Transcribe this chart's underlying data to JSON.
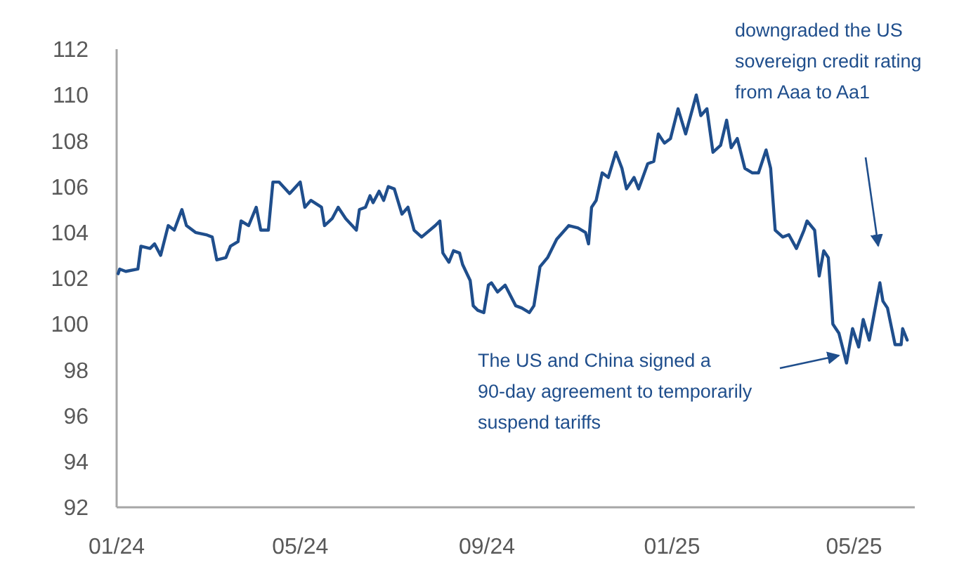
{
  "chart_data": {
    "type": "line",
    "x": [
      "2024-01-02",
      "2024-01-03",
      "2024-01-07",
      "2024-01-15",
      "2024-01-17",
      "2024-01-23",
      "2024-01-26",
      "2024-01-30",
      "2024-02-04",
      "2024-02-08",
      "2024-02-13",
      "2024-02-16",
      "2024-02-22",
      "2024-02-29",
      "2024-03-04",
      "2024-03-07",
      "2024-03-13",
      "2024-03-16",
      "2024-03-21",
      "2024-03-23",
      "2024-03-28",
      "2024-04-02",
      "2024-04-05",
      "2024-04-10",
      "2024-04-13",
      "2024-04-17",
      "2024-04-24",
      "2024-05-01",
      "2024-05-04",
      "2024-05-08",
      "2024-05-15",
      "2024-05-17",
      "2024-05-22",
      "2024-05-26",
      "2024-05-31",
      "2024-06-07",
      "2024-06-09",
      "2024-06-13",
      "2024-06-16",
      "2024-06-18",
      "2024-06-22",
      "2024-06-25",
      "2024-06-28",
      "2024-07-02",
      "2024-07-07",
      "2024-07-11",
      "2024-07-15",
      "2024-07-20",
      "2024-07-29",
      "2024-08-01",
      "2024-08-03",
      "2024-08-07",
      "2024-08-10",
      "2024-08-14",
      "2024-08-16",
      "2024-08-21",
      "2024-08-23",
      "2024-08-26",
      "2024-08-30",
      "2024-09-02",
      "2024-09-04",
      "2024-09-08",
      "2024-09-13",
      "2024-09-20",
      "2024-09-24",
      "2024-09-29",
      "2024-10-02",
      "2024-10-06",
      "2024-10-11",
      "2024-10-17",
      "2024-10-25",
      "2024-10-31",
      "2024-11-05",
      "2024-11-07",
      "2024-11-09",
      "2024-11-12",
      "2024-11-16",
      "2024-11-20",
      "2024-11-25",
      "2024-11-29",
      "2024-12-02",
      "2024-12-07",
      "2024-12-10",
      "2024-12-16",
      "2024-12-20",
      "2024-12-23",
      "2024-12-27",
      "2024-12-31",
      "2025-01-05",
      "2025-01-10",
      "2025-01-17",
      "2025-01-20",
      "2025-01-24",
      "2025-01-28",
      "2025-02-02",
      "2025-02-06",
      "2025-02-09",
      "2025-02-13",
      "2025-02-18",
      "2025-02-23",
      "2025-02-27",
      "2025-03-04",
      "2025-03-07",
      "2025-03-10",
      "2025-03-15",
      "2025-03-19",
      "2025-03-24",
      "2025-03-29",
      "2025-03-31",
      "2025-04-05",
      "2025-04-08",
      "2025-04-11",
      "2025-04-14",
      "2025-04-17",
      "2025-04-21",
      "2025-04-26",
      "2025-04-30",
      "2025-05-04",
      "2025-05-07",
      "2025-05-11",
      "2025-05-18",
      "2025-05-20",
      "2025-05-23",
      "2025-05-28",
      "2025-06-01",
      "2025-06-02",
      "2025-06-05"
    ],
    "series": [
      {
        "color": "#1f4e8c",
        "values": [
          102.2,
          102.4,
          102.3,
          102.4,
          103.4,
          103.3,
          103.5,
          103.0,
          104.3,
          104.1,
          105.0,
          104.3,
          104.0,
          103.9,
          103.8,
          102.8,
          102.9,
          103.4,
          103.6,
          104.5,
          104.3,
          105.1,
          104.1,
          104.1,
          106.2,
          106.2,
          105.7,
          106.2,
          105.1,
          105.4,
          105.1,
          104.3,
          104.6,
          105.1,
          104.6,
          104.1,
          105.0,
          105.1,
          105.6,
          105.3,
          105.8,
          105.4,
          106.0,
          105.9,
          104.8,
          105.1,
          104.1,
          103.8,
          104.3,
          104.5,
          103.1,
          102.7,
          103.2,
          103.1,
          102.6,
          101.9,
          100.8,
          100.6,
          100.5,
          101.7,
          101.8,
          101.4,
          101.7,
          100.8,
          100.7,
          100.5,
          100.8,
          102.5,
          102.9,
          103.7,
          104.3,
          104.2,
          104.0,
          103.5,
          105.1,
          105.4,
          106.6,
          106.4,
          107.5,
          106.8,
          105.9,
          106.4,
          105.9,
          107.0,
          107.1,
          108.3,
          107.9,
          108.1,
          109.4,
          108.3,
          110.0,
          109.1,
          109.4,
          107.5,
          107.8,
          108.9,
          107.7,
          108.1,
          106.8,
          106.6,
          106.6,
          107.6,
          106.8,
          104.1,
          103.8,
          103.9,
          103.3,
          104.1,
          104.5,
          104.1,
          102.1,
          103.2,
          102.9,
          100.0,
          99.6,
          98.3,
          99.8,
          99.0,
          100.2,
          99.3,
          101.8,
          101.0,
          100.7,
          99.1,
          99.1,
          99.8,
          99.3
        ]
      }
    ],
    "xlim": [
      "2024-01-01",
      "2025-06-10"
    ],
    "xticks": [
      {
        "value": "2024-01-01",
        "label": "01/24"
      },
      {
        "value": "2024-05-01",
        "label": "05/24"
      },
      {
        "value": "2024-09-01",
        "label": "09/24"
      },
      {
        "value": "2025-01-01",
        "label": "01/25"
      },
      {
        "value": "2025-05-01",
        "label": "05/25"
      }
    ],
    "ylim": [
      92,
      112
    ],
    "yticks": [
      92,
      94,
      96,
      98,
      100,
      102,
      104,
      106,
      108,
      110,
      112
    ],
    "grid": false,
    "marker": "none",
    "line_style": "solid",
    "annotations": [
      "downgraded the US sovereign credit rating from Aaa to Aa1",
      "The US and China signed a 90-day agreement to temporarily suspend tariffs"
    ]
  }
}
